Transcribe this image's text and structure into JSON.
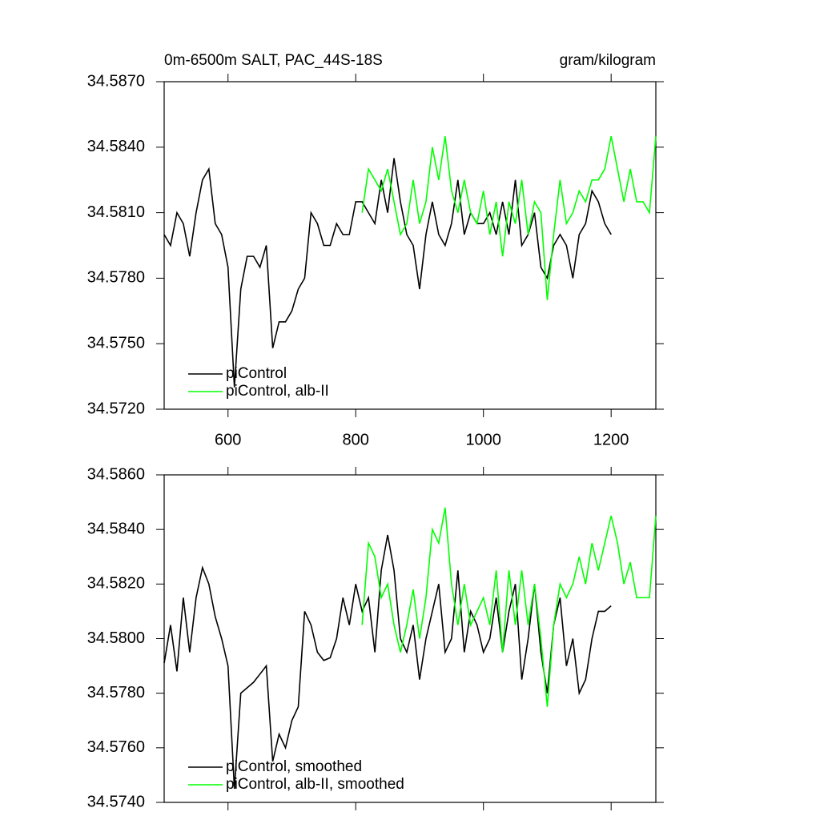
{
  "chart_data": [
    {
      "type": "line",
      "title": "0m-6500m SALT, PAC_44S-18S",
      "units": "gram/kilogram",
      "xlim": [
        500,
        1270
      ],
      "xticks": [
        600,
        800,
        1000,
        1200
      ],
      "xtick_labels": true,
      "ylim": [
        34.572,
        34.587
      ],
      "yticks": [
        {
          "value": 34.572,
          "label": "34.5720"
        },
        {
          "value": 34.575,
          "label": "34.5750"
        },
        {
          "value": 34.578,
          "label": "34.5780"
        },
        {
          "value": 34.581,
          "label": "34.5810"
        },
        {
          "value": 34.584,
          "label": "34.5840"
        },
        {
          "value": 34.587,
          "label": "34.5870"
        }
      ],
      "series": [
        {
          "name": "piControl",
          "color": "#000000",
          "x": [
            500,
            510,
            520,
            530,
            540,
            550,
            560,
            570,
            580,
            590,
            600,
            610,
            620,
            630,
            640,
            650,
            660,
            670,
            680,
            690,
            700,
            710,
            720,
            730,
            740,
            750,
            760,
            770,
            780,
            790,
            800,
            810,
            820,
            830,
            840,
            850,
            860,
            870,
            880,
            890,
            900,
            910,
            920,
            930,
            940,
            950,
            960,
            970,
            980,
            990,
            1000,
            1010,
            1020,
            1030,
            1040,
            1050,
            1060,
            1070,
            1080,
            1090,
            1100,
            1110,
            1120,
            1130,
            1140,
            1150,
            1160,
            1170,
            1180,
            1190,
            1200
          ],
          "values": [
            34.58,
            34.5795,
            34.581,
            34.5805,
            34.579,
            34.581,
            34.5825,
            34.583,
            34.5805,
            34.58,
            34.5785,
            34.573,
            34.5775,
            34.579,
            34.579,
            34.5785,
            34.5795,
            34.5748,
            34.576,
            34.576,
            34.5765,
            34.5775,
            34.578,
            34.581,
            34.5805,
            34.5795,
            34.5795,
            34.5805,
            34.58,
            34.58,
            34.5815,
            34.5815,
            34.581,
            34.5805,
            34.5825,
            34.581,
            34.5835,
            34.5815,
            34.58,
            34.5795,
            34.5775,
            34.58,
            34.5815,
            34.58,
            34.5795,
            34.5805,
            34.5825,
            34.58,
            34.581,
            34.5805,
            34.5805,
            34.581,
            34.58,
            34.5815,
            34.58,
            34.5825,
            34.5795,
            34.58,
            34.581,
            34.5785,
            34.578,
            34.5795,
            34.58,
            34.5795,
            34.578,
            34.58,
            34.5805,
            34.582,
            34.5815,
            34.5805,
            34.58
          ]
        },
        {
          "name": "piControl, alb-II",
          "color": "#00ff00",
          "x": [
            810,
            820,
            830,
            840,
            850,
            860,
            870,
            880,
            890,
            900,
            910,
            920,
            930,
            940,
            950,
            960,
            970,
            980,
            990,
            1000,
            1010,
            1020,
            1030,
            1040,
            1050,
            1060,
            1070,
            1080,
            1090,
            1100,
            1110,
            1120,
            1130,
            1140,
            1150,
            1160,
            1170,
            1180,
            1190,
            1200,
            1210,
            1220,
            1230,
            1240,
            1250,
            1260,
            1270
          ],
          "values": [
            34.581,
            34.583,
            34.5825,
            34.582,
            34.583,
            34.5815,
            34.58,
            34.5805,
            34.5825,
            34.5805,
            34.5815,
            34.584,
            34.5825,
            34.5845,
            34.582,
            34.581,
            34.5825,
            34.581,
            34.5805,
            34.582,
            34.58,
            34.5815,
            34.579,
            34.5815,
            34.5805,
            34.5825,
            34.58,
            34.5815,
            34.581,
            34.577,
            34.58,
            34.5825,
            34.5805,
            34.581,
            34.582,
            34.5815,
            34.5825,
            34.5825,
            34.583,
            34.5845,
            34.583,
            34.5815,
            34.583,
            34.5815,
            34.5815,
            34.581,
            34.5845
          ]
        }
      ]
    },
    {
      "type": "line",
      "xlim": [
        500,
        1270
      ],
      "xticks": [
        600,
        800,
        1000,
        1200
      ],
      "xtick_labels": false,
      "ylim": [
        34.574,
        34.586
      ],
      "yticks": [
        {
          "value": 34.574,
          "label": "34.5740"
        },
        {
          "value": 34.576,
          "label": "34.5760"
        },
        {
          "value": 34.578,
          "label": "34.5780"
        },
        {
          "value": 34.58,
          "label": "34.5800"
        },
        {
          "value": 34.582,
          "label": "34.5820"
        },
        {
          "value": 34.584,
          "label": "34.5840"
        },
        {
          "value": 34.586,
          "label": "34.5860"
        }
      ],
      "series": [
        {
          "name": "piControl, smoothed",
          "color": "#000000",
          "x": [
            500,
            510,
            520,
            530,
            540,
            550,
            560,
            570,
            580,
            590,
            600,
            610,
            620,
            630,
            640,
            650,
            660,
            670,
            680,
            690,
            700,
            710,
            720,
            730,
            740,
            750,
            760,
            770,
            780,
            790,
            800,
            810,
            820,
            830,
            840,
            850,
            860,
            870,
            880,
            890,
            900,
            910,
            920,
            930,
            940,
            950,
            960,
            970,
            980,
            990,
            1000,
            1010,
            1020,
            1030,
            1040,
            1050,
            1060,
            1070,
            1080,
            1090,
            1100,
            1110,
            1120,
            1130,
            1140,
            1150,
            1160,
            1170,
            1180,
            1190,
            1200
          ],
          "values": [
            34.5791,
            34.5805,
            34.5788,
            34.5815,
            34.5795,
            34.5815,
            34.5826,
            34.582,
            34.5808,
            34.58,
            34.579,
            34.5745,
            34.578,
            34.5782,
            34.5784,
            34.5787,
            34.579,
            34.5755,
            34.5765,
            34.576,
            34.577,
            34.5775,
            34.581,
            34.5805,
            34.5795,
            34.5792,
            34.5793,
            34.58,
            34.5815,
            34.5805,
            34.582,
            34.581,
            34.5815,
            34.5795,
            34.5825,
            34.5838,
            34.5825,
            34.58,
            34.5795,
            34.5805,
            34.5785,
            34.58,
            34.581,
            34.582,
            34.5795,
            34.58,
            34.5825,
            34.5795,
            34.581,
            34.5805,
            34.5795,
            34.58,
            34.5815,
            34.5795,
            34.581,
            34.582,
            34.5785,
            34.58,
            34.582,
            34.5795,
            34.578,
            34.5805,
            34.5815,
            34.579,
            34.58,
            34.578,
            34.5785,
            34.58,
            34.581,
            34.581,
            34.5812
          ]
        },
        {
          "name": "piControl, alb-II, smoothed",
          "color": "#00ff00",
          "x": [
            810,
            820,
            830,
            840,
            850,
            860,
            870,
            880,
            890,
            900,
            910,
            920,
            930,
            940,
            950,
            960,
            970,
            980,
            990,
            1000,
            1010,
            1020,
            1030,
            1040,
            1050,
            1060,
            1070,
            1080,
            1090,
            1100,
            1110,
            1120,
            1130,
            1140,
            1150,
            1160,
            1170,
            1180,
            1190,
            1200,
            1210,
            1220,
            1230,
            1240,
            1250,
            1260,
            1270
          ],
          "values": [
            34.5805,
            34.5835,
            34.583,
            34.5815,
            34.582,
            34.5805,
            34.5795,
            34.5805,
            34.5818,
            34.58,
            34.5815,
            34.584,
            34.5835,
            34.5848,
            34.582,
            34.5805,
            34.582,
            34.5805,
            34.581,
            34.5815,
            34.5805,
            34.5825,
            34.5795,
            34.5825,
            34.5805,
            34.5825,
            34.5805,
            34.582,
            34.58,
            34.5775,
            34.5805,
            34.582,
            34.5815,
            34.582,
            34.583,
            34.582,
            34.5835,
            34.5825,
            34.5835,
            34.5845,
            34.5835,
            34.582,
            34.5828,
            34.5815,
            34.5815,
            34.5815,
            34.5845
          ]
        }
      ]
    }
  ]
}
